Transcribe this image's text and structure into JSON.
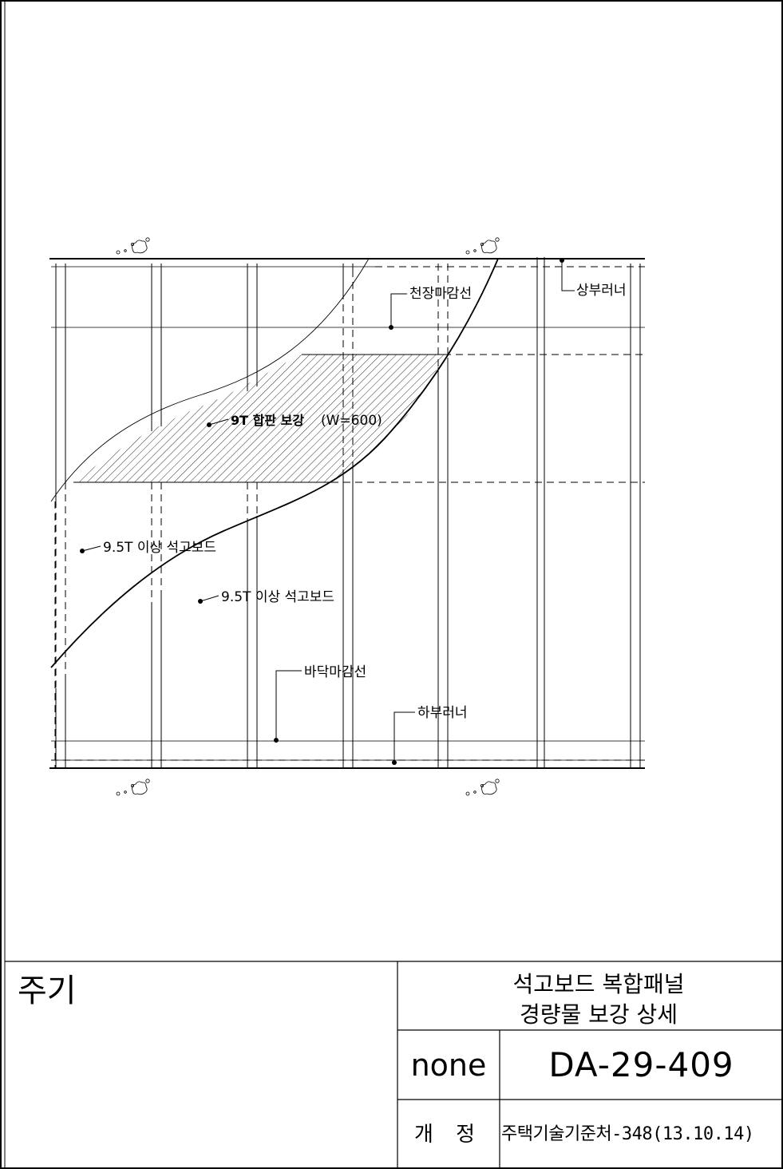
{
  "drawing": {
    "labels": {
      "ceiling_finish": "천장마감선",
      "top_runner": "상부러너",
      "plywood_reinforcement_main": "9T 합판 보강",
      "plywood_reinforcement_width": "(W=600)",
      "gypsum_board_1": "9.5T 이상 석고보드",
      "gypsum_board_2": "9.5T 이상 석고보드",
      "floor_finish": "바닥마감선",
      "bottom_runner": "하부러너"
    }
  },
  "title_block": {
    "notes_label": "주기",
    "title_line1": "석고보드 복합패널",
    "title_line2": "경량물 보강 상세",
    "scale": "none",
    "drawing_number": "DA-29-409",
    "revision_label": "개 정",
    "revision_value": "주택기술기준처-348(13.10.14)"
  }
}
